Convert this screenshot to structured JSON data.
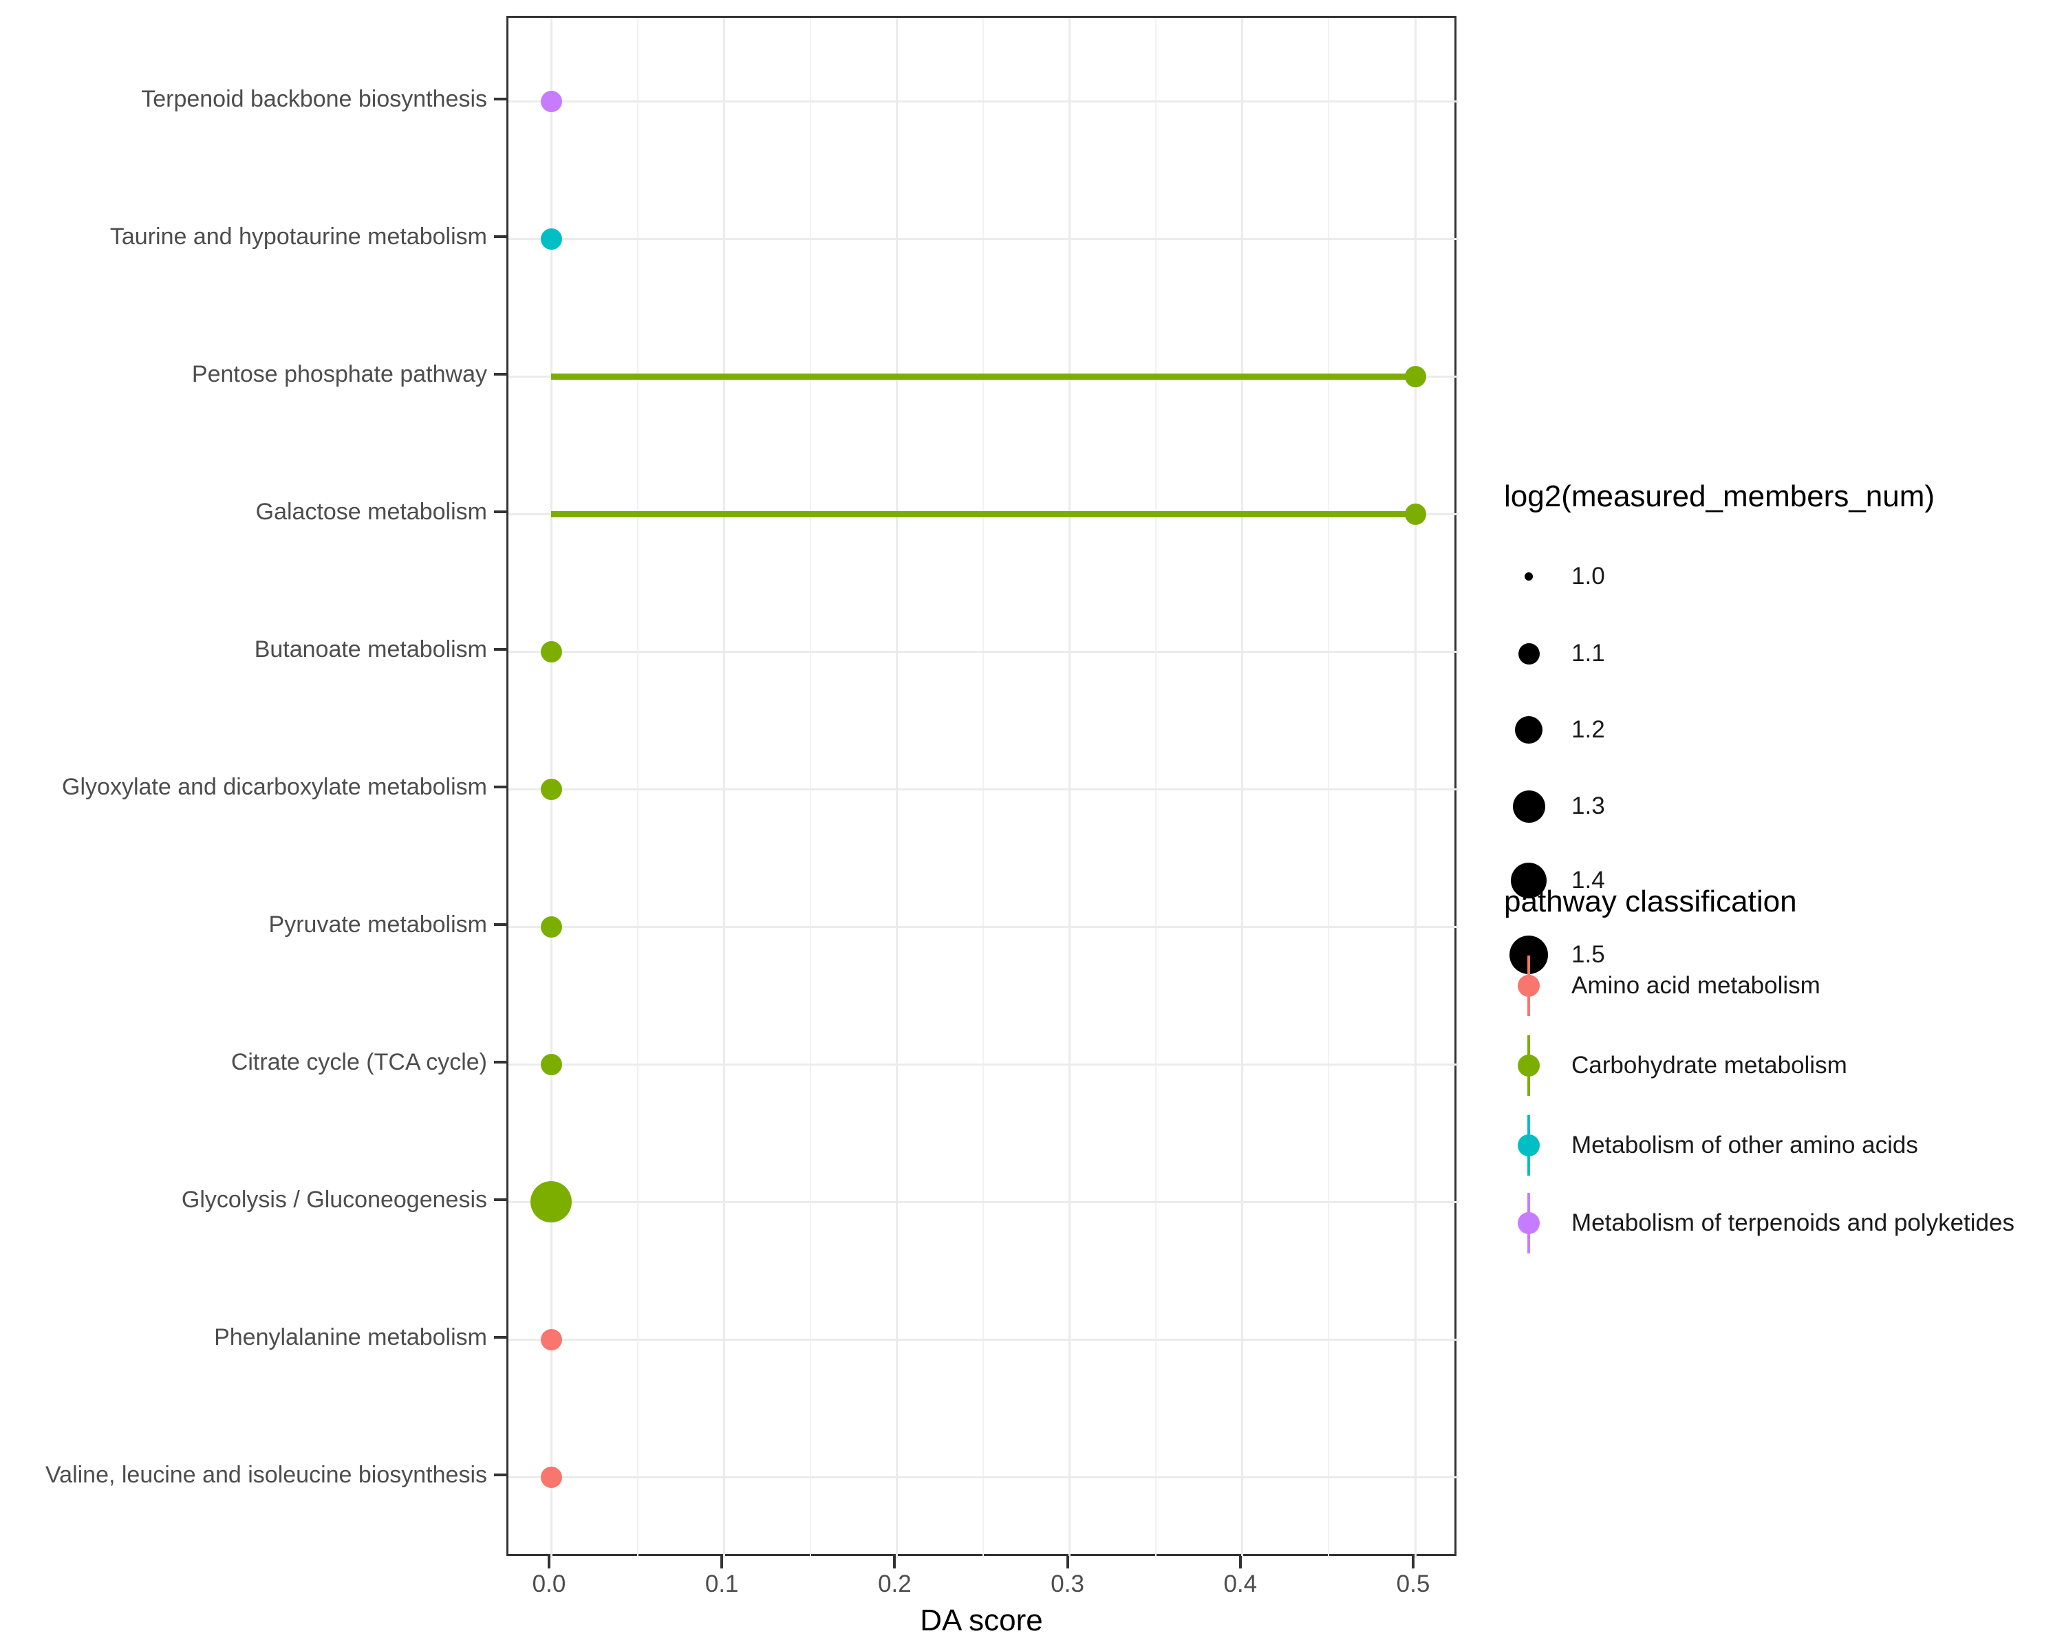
{
  "chart_data": {
    "type": "scatter",
    "variant": "lollipop",
    "title": "",
    "xlabel": "DA score",
    "ylabel": "",
    "xlim": [
      -0.024,
      0.525
    ],
    "x_tick_labels": [
      "0.0",
      "0.1",
      "0.2",
      "0.3",
      "0.4",
      "0.5"
    ],
    "x_tick_values": [
      0.0,
      0.1,
      0.2,
      0.3,
      0.4,
      0.5
    ],
    "x_minor_tick_values": [
      0.05,
      0.15,
      0.25,
      0.35,
      0.45
    ],
    "grid": true,
    "legend_position": "right",
    "categories": [
      "Terpenoid backbone biosynthesis",
      "Taurine and hypotaurine metabolism",
      "Pentose phosphate pathway",
      "Galactose metabolism",
      "Butanoate metabolism",
      "Glyoxylate and dicarboxylate metabolism",
      "Pyruvate metabolism",
      "Citrate cycle (TCA cycle)",
      "Glycolysis / Gluconeogenesis",
      "Phenylalanine metabolism",
      "Valine, leucine and isoleucine biosynthesis"
    ],
    "points": [
      {
        "pathway": "Terpenoid backbone biosynthesis",
        "da_score": 0.0,
        "log2_measured_members_num": 1.1,
        "classification": "Metabolism of terpenoids and polyketides"
      },
      {
        "pathway": "Taurine and hypotaurine metabolism",
        "da_score": 0.0,
        "log2_measured_members_num": 1.1,
        "classification": "Metabolism of other amino acids"
      },
      {
        "pathway": "Pentose phosphate pathway",
        "da_score": 0.5,
        "log2_measured_members_num": 1.1,
        "classification": "Carbohydrate metabolism"
      },
      {
        "pathway": "Galactose metabolism",
        "da_score": 0.5,
        "log2_measured_members_num": 1.1,
        "classification": "Carbohydrate metabolism"
      },
      {
        "pathway": "Butanoate metabolism",
        "da_score": 0.0,
        "log2_measured_members_num": 1.1,
        "classification": "Carbohydrate metabolism"
      },
      {
        "pathway": "Glyoxylate and dicarboxylate metabolism",
        "da_score": 0.0,
        "log2_measured_members_num": 1.1,
        "classification": "Carbohydrate metabolism"
      },
      {
        "pathway": "Pyruvate metabolism",
        "da_score": 0.0,
        "log2_measured_members_num": 1.1,
        "classification": "Carbohydrate metabolism"
      },
      {
        "pathway": "Citrate cycle (TCA cycle)",
        "da_score": 0.0,
        "log2_measured_members_num": 1.1,
        "classification": "Carbohydrate metabolism"
      },
      {
        "pathway": "Glycolysis / Gluconeogenesis",
        "da_score": 0.0,
        "log2_measured_members_num": 1.6,
        "classification": "Carbohydrate metabolism"
      },
      {
        "pathway": "Phenylalanine metabolism",
        "da_score": 0.0,
        "log2_measured_members_num": 1.1,
        "classification": "Amino acid metabolism"
      },
      {
        "pathway": "Valine, leucine and isoleucine biosynthesis",
        "da_score": 0.0,
        "log2_measured_members_num": 1.1,
        "classification": "Amino acid metabolism"
      }
    ],
    "size_legend": {
      "title": "log2(measured_members_num)",
      "breaks": [
        1.0,
        1.1,
        1.2,
        1.3,
        1.4,
        1.5
      ],
      "break_labels": [
        "1.0",
        "1.1",
        "1.2",
        "1.3",
        "1.4",
        "1.5"
      ]
    },
    "color_legend": {
      "title": "pathway classification",
      "entries": [
        {
          "label": "Amino acid metabolism",
          "color": "#F8766D"
        },
        {
          "label": "Carbohydrate metabolism",
          "color": "#7CAE00"
        },
        {
          "label": "Metabolism of other amino acids",
          "color": "#00BFC4"
        },
        {
          "label": "Metabolism of terpenoids and polyketides",
          "color": "#C77CFF"
        }
      ]
    }
  },
  "colors": {
    "amino_acid_metabolism": "#F8766D",
    "carbohydrate_metabolism": "#7CAE00",
    "metabolism_of_other_amino_acids": "#00BFC4",
    "metabolism_of_terpenoids_and_polyketides": "#C77CFF",
    "grid_major": "#EBEBEB",
    "grid_minor": "#F2F2F2",
    "panel_border": "#333333",
    "axis_text": "#4D4D4D",
    "axis_title": "#000000",
    "legend_key": "#000000",
    "background": "#FFFFFF"
  }
}
